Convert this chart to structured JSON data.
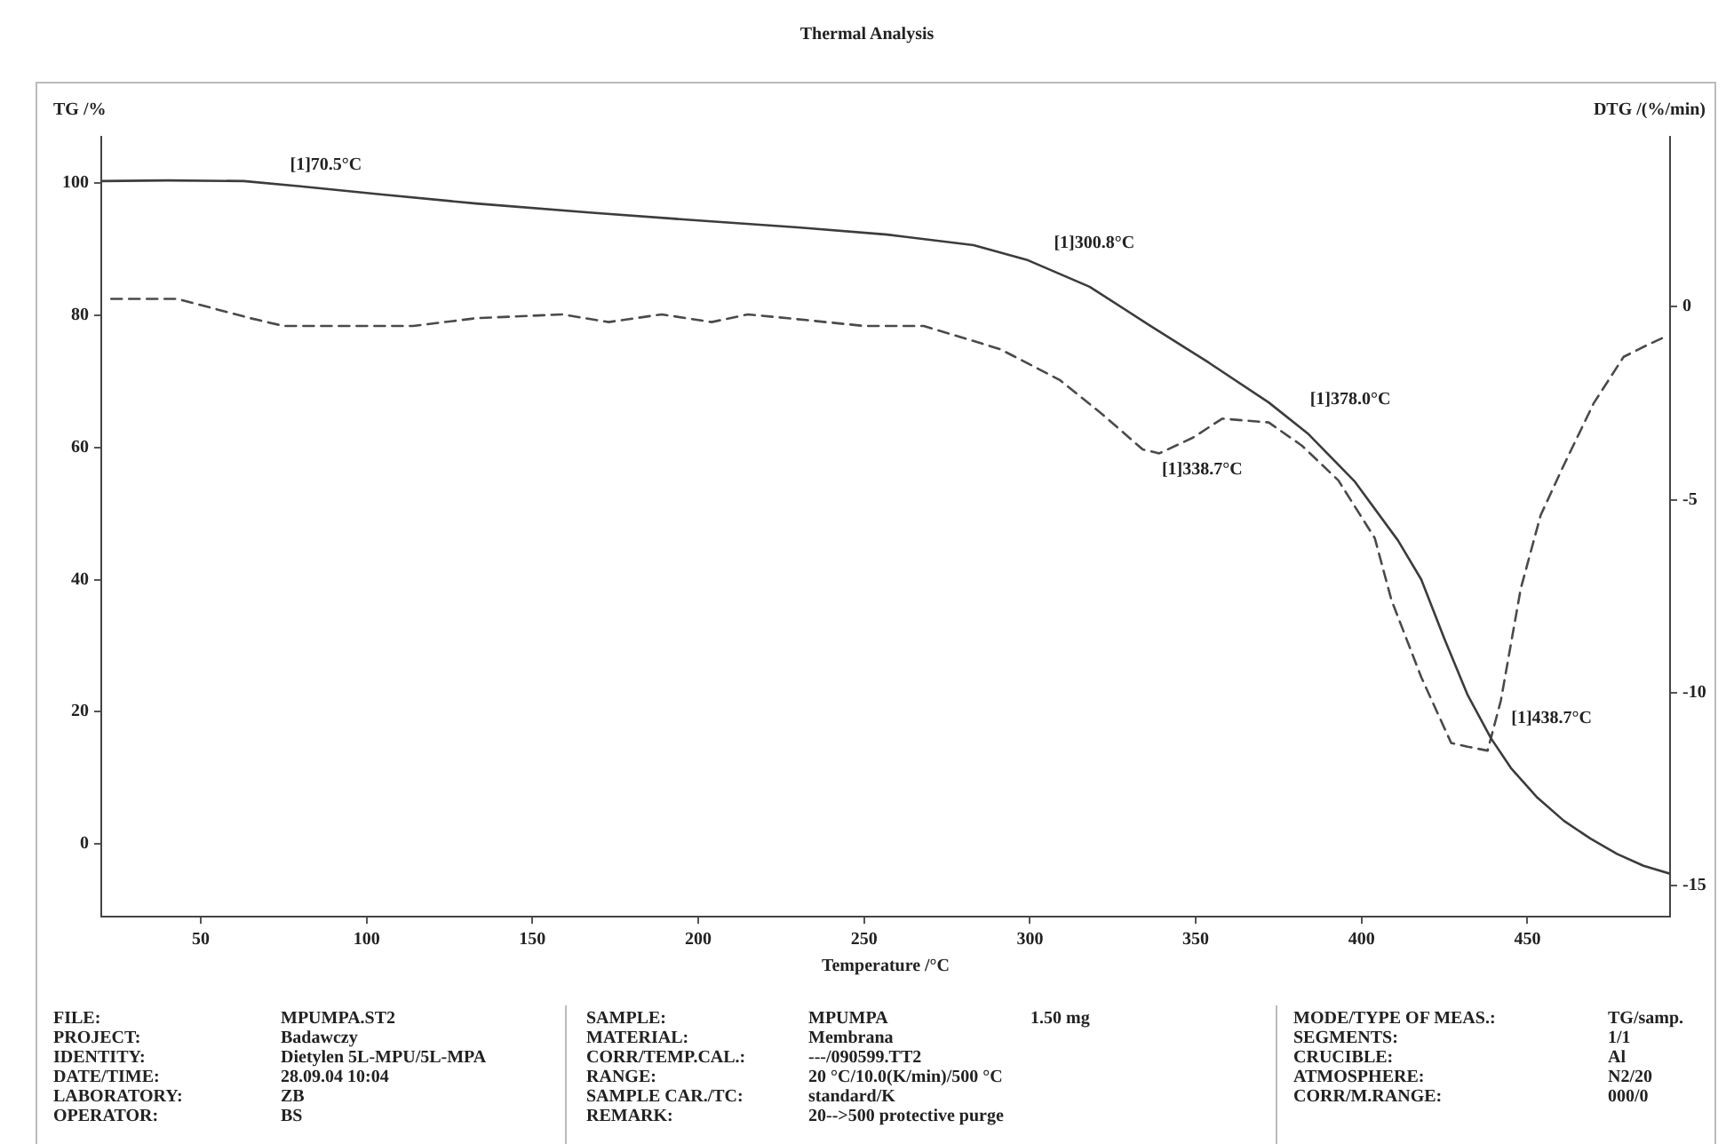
{
  "chart_data": {
    "type": "line",
    "title": "Thermal Analysis",
    "xlabel": "Temperature /°C",
    "ylabel": "TG /%",
    "y2label": "DTG /(%/min)",
    "xlim": [
      20,
      493
    ],
    "xticks": [
      50,
      100,
      150,
      200,
      250,
      300,
      350,
      400,
      450
    ],
    "ylim": [
      -11,
      107
    ],
    "yticks": [
      0,
      20,
      40,
      60,
      80,
      100
    ],
    "y2lim": [
      -15.8,
      4.4
    ],
    "y2ticks": [
      -15,
      -10,
      -5,
      0
    ],
    "series": [
      {
        "color": "#3c3c3c",
        "line_style": "solid",
        "x": [
          20,
          40,
          63,
          80,
          104,
          133,
          168,
          204,
          230,
          257,
          283,
          299,
          318,
          336,
          354,
          372,
          384,
          398,
          411,
          418,
          425,
          432,
          439,
          445,
          453,
          461,
          469,
          477,
          485,
          493
        ],
        "values": [
          100.3,
          100.4,
          100.3,
          99.5,
          98.3,
          96.9,
          95.5,
          94.2,
          93.3,
          92.2,
          90.6,
          88.4,
          84.3,
          78.5,
          72.8,
          66.8,
          62.0,
          54.8,
          45.9,
          40.0,
          31.0,
          22.5,
          16.0,
          11.5,
          7.0,
          3.5,
          0.8,
          -1.5,
          -3.3,
          -4.5
        ]
      },
      {
        "color": "#4a4a4a",
        "line_style": "dashed",
        "axis": "y2",
        "x": [
          23,
          43,
          65,
          75,
          97,
          114,
          133,
          159,
          173,
          189,
          204,
          215,
          227,
          250,
          268,
          291,
          309,
          322,
          334,
          339,
          349,
          358,
          372,
          382,
          393,
          404,
          409,
          418,
          427,
          432,
          438,
          442,
          448,
          454,
          461,
          470,
          479,
          486,
          491
        ],
        "values": [
          0.2,
          0.2,
          -0.3,
          -0.5,
          -0.5,
          -0.5,
          -0.3,
          -0.2,
          -0.4,
          -0.2,
          -0.4,
          -0.2,
          -0.3,
          -0.5,
          -0.5,
          -1.1,
          -1.9,
          -2.8,
          -3.7,
          -3.8,
          -3.4,
          -2.9,
          -3.0,
          -3.6,
          -4.5,
          -6.0,
          -7.6,
          -9.6,
          -11.3,
          -11.4,
          -11.5,
          -10.2,
          -7.3,
          -5.4,
          -4.1,
          -2.5,
          -1.3,
          -1.0,
          -0.8
        ]
      }
    ],
    "annotations": [
      {
        "text": "[1]70.5°C",
        "x": 70.5,
        "y": 99.8
      },
      {
        "text": "[1]300.8°C",
        "x": 300.8,
        "y": 88.0
      },
      {
        "text": "[1]338.7°C",
        "x": 338.7,
        "y": 59.3
      },
      {
        "text": "[1]378.0°C",
        "x": 378.0,
        "y": 64.3
      },
      {
        "text": "[1]438.7°C",
        "x": 438.7,
        "y": 16.0
      },
      "FILE:\tMPUMPA.ST2",
      "PROJECT:\tBadawczy",
      "IDENTITY:\tDietylen 5L-MPU/5L-MPA",
      "DATE/TIME:\t28.09.04 10:04",
      "LABORATORY:\tZB",
      "OPERATOR:\tBS",
      "SAMPLE:\tMPUMPA\t1.50 mg",
      "MATERIAL:\tMembrana",
      "CORR/TEMP.CAL.:\t---/090599.TT2",
      "RANGE:\t20 °C/10.0(K/min)/500 °C",
      "SAMPLE CAR./TC:\tstandard/K",
      "REMARK:\t20-->500 protective purge",
      "MODE/TYPE OF MEAS.:\tTG/samp.",
      "SEGMENTS:\t1/1",
      "CRUCIBLE:\tAl",
      "ATMOSPHERE:\tN2/20",
      "CORR/M.RANGE:\t000/0"
    ]
  }
}
